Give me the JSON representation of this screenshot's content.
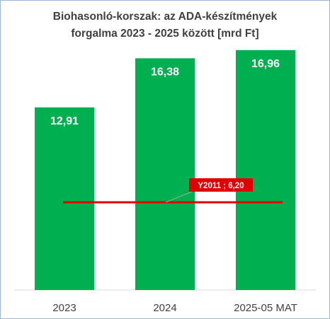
{
  "chart_data": {
    "type": "bar",
    "title_lines": [
      "Biohasonló-korszak: az ADA-készítmények",
      "forgalma 2023 - 2025 között [mrd Ft]"
    ],
    "categories": [
      "2023",
      "2024",
      "2025-05 MAT"
    ],
    "values": [
      12.91,
      16.38,
      16.96
    ],
    "value_labels": [
      "12,91",
      "16,38",
      "16,96"
    ],
    "ylim": [
      0,
      20
    ],
    "xlabel": "",
    "ylabel": "",
    "grid": false,
    "legend": "none",
    "bar_color": "#00b050",
    "reference_line": {
      "value": 6.2,
      "label": "Y2011 ; 6,20",
      "color": "#e00000"
    }
  }
}
